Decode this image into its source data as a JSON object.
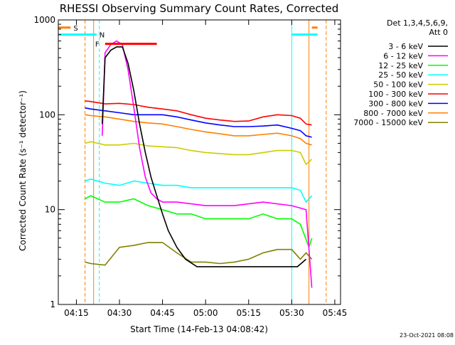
{
  "chart_data": {
    "type": "line",
    "title": "RHESSI Observing Summary Count Rates, Corrected",
    "xlabel": "Start Time (14-Feb-13 04:08:42)",
    "ylabel": "Corrected Count Rate (s⁻¹ detector⁻¹)",
    "y_scale": "log",
    "ylim": [
      1,
      1000
    ],
    "xlim": [
      "04:08:42",
      "05:47:00"
    ],
    "x_ticks": [
      "04:15",
      "04:30",
      "04:45",
      "05:00",
      "05:15",
      "05:30",
      "05:45"
    ],
    "y_ticks": [
      "1",
      "10",
      "100",
      "1000"
    ],
    "grid": false,
    "legend_position": "right",
    "legend_header": [
      "Det 1,3,4,5,6,9,",
      "Att 0"
    ],
    "corner_note": "23-Oct-2021 08:08",
    "series": [
      {
        "name": "3 - 6 keV",
        "color": "#000000",
        "points": [
          [
            "04:24",
            80
          ],
          [
            "04:25",
            400
          ],
          [
            "04:27",
            480
          ],
          [
            "04:29",
            520
          ],
          [
            "04:31",
            520
          ],
          [
            "04:33",
            350
          ],
          [
            "04:35",
            180
          ],
          [
            "04:37",
            80
          ],
          [
            "04:39",
            40
          ],
          [
            "04:41",
            22
          ],
          [
            "04:43",
            14
          ],
          [
            "04:45",
            9
          ],
          [
            "04:47",
            6
          ],
          [
            "04:50",
            4
          ],
          [
            "04:53",
            3
          ],
          [
            "04:57",
            2.5
          ],
          [
            "05:05",
            2.5
          ],
          [
            "05:15",
            2.5
          ],
          [
            "05:25",
            2.5
          ],
          [
            "05:32",
            2.5
          ],
          [
            "05:35",
            3
          ]
        ]
      },
      {
        "name": "6 - 12 keV",
        "color": "#ff00ff",
        "points": [
          [
            "04:24",
            60
          ],
          [
            "04:25",
            450
          ],
          [
            "04:27",
            550
          ],
          [
            "04:29",
            600
          ],
          [
            "04:31",
            550
          ],
          [
            "04:33",
            300
          ],
          [
            "04:35",
            120
          ],
          [
            "04:37",
            45
          ],
          [
            "04:39",
            22
          ],
          [
            "04:41",
            15
          ],
          [
            "04:43",
            13
          ],
          [
            "04:45",
            12
          ],
          [
            "04:50",
            12
          ],
          [
            "05:00",
            11
          ],
          [
            "05:10",
            11
          ],
          [
            "05:20",
            12
          ],
          [
            "05:30",
            11
          ],
          [
            "05:35",
            10
          ],
          [
            "05:37",
            1.5
          ]
        ]
      },
      {
        "name": "12 - 25 keV",
        "color": "#00ff00",
        "points": [
          [
            "04:18",
            13
          ],
          [
            "04:20",
            14
          ],
          [
            "04:25",
            12
          ],
          [
            "04:30",
            12
          ],
          [
            "04:35",
            13
          ],
          [
            "04:40",
            11
          ],
          [
            "04:45",
            10
          ],
          [
            "04:50",
            9
          ],
          [
            "04:55",
            9
          ],
          [
            "05:00",
            8
          ],
          [
            "05:05",
            8
          ],
          [
            "05:10",
            8
          ],
          [
            "05:15",
            8
          ],
          [
            "05:20",
            9
          ],
          [
            "05:25",
            8
          ],
          [
            "05:30",
            8
          ],
          [
            "05:33",
            7
          ],
          [
            "05:36",
            4
          ],
          [
            "05:37",
            5
          ]
        ]
      },
      {
        "name": "25 - 50 keV",
        "color": "#00ffff",
        "points": [
          [
            "04:18",
            20
          ],
          [
            "04:20",
            21
          ],
          [
            "04:25",
            19
          ],
          [
            "04:30",
            18
          ],
          [
            "04:35",
            20
          ],
          [
            "04:40",
            19
          ],
          [
            "04:45",
            18
          ],
          [
            "04:50",
            18
          ],
          [
            "04:55",
            17
          ],
          [
            "05:00",
            17
          ],
          [
            "05:05",
            17
          ],
          [
            "05:10",
            17
          ],
          [
            "05:15",
            17
          ],
          [
            "05:20",
            17
          ],
          [
            "05:25",
            17
          ],
          [
            "05:30",
            17
          ],
          [
            "05:33",
            16
          ],
          [
            "05:35",
            12
          ],
          [
            "05:37",
            14
          ]
        ]
      },
      {
        "name": "50 - 100 keV",
        "color": "#cccc00",
        "points": [
          [
            "04:18",
            50
          ],
          [
            "04:20",
            52
          ],
          [
            "04:25",
            48
          ],
          [
            "04:30",
            48
          ],
          [
            "04:35",
            50
          ],
          [
            "04:40",
            47
          ],
          [
            "04:45",
            46
          ],
          [
            "04:50",
            45
          ],
          [
            "04:55",
            42
          ],
          [
            "05:00",
            40
          ],
          [
            "05:05",
            39
          ],
          [
            "05:10",
            38
          ],
          [
            "05:15",
            38
          ],
          [
            "05:20",
            40
          ],
          [
            "05:25",
            42
          ],
          [
            "05:30",
            42
          ],
          [
            "05:33",
            40
          ],
          [
            "05:35",
            30
          ],
          [
            "05:37",
            34
          ]
        ]
      },
      {
        "name": "100 - 300 keV",
        "color": "#ff0000",
        "points": [
          [
            "04:18",
            140
          ],
          [
            "04:20",
            138
          ],
          [
            "04:25",
            130
          ],
          [
            "04:30",
            132
          ],
          [
            "04:35",
            128
          ],
          [
            "04:40",
            120
          ],
          [
            "04:45",
            115
          ],
          [
            "04:50",
            110
          ],
          [
            "04:55",
            100
          ],
          [
            "05:00",
            92
          ],
          [
            "05:05",
            88
          ],
          [
            "05:10",
            85
          ],
          [
            "05:15",
            86
          ],
          [
            "05:20",
            95
          ],
          [
            "05:25",
            100
          ],
          [
            "05:30",
            98
          ],
          [
            "05:33",
            92
          ],
          [
            "05:35",
            80
          ],
          [
            "05:37",
            78
          ]
        ]
      },
      {
        "name": "300 - 800 keV",
        "color": "#0000ff",
        "points": [
          [
            "04:18",
            118
          ],
          [
            "04:20",
            115
          ],
          [
            "04:25",
            110
          ],
          [
            "04:30",
            105
          ],
          [
            "04:35",
            100
          ],
          [
            "04:40",
            100
          ],
          [
            "04:45",
            100
          ],
          [
            "04:50",
            95
          ],
          [
            "04:55",
            88
          ],
          [
            "05:00",
            82
          ],
          [
            "05:05",
            78
          ],
          [
            "05:10",
            75
          ],
          [
            "05:15",
            75
          ],
          [
            "05:20",
            76
          ],
          [
            "05:25",
            78
          ],
          [
            "05:30",
            72
          ],
          [
            "05:33",
            68
          ],
          [
            "05:35",
            60
          ],
          [
            "05:37",
            58
          ]
        ]
      },
      {
        "name": "800 - 7000 keV",
        "color": "#ff8000",
        "points": [
          [
            "04:18",
            100
          ],
          [
            "04:20",
            98
          ],
          [
            "04:25",
            95
          ],
          [
            "04:30",
            90
          ],
          [
            "04:35",
            85
          ],
          [
            "04:40",
            82
          ],
          [
            "04:45",
            80
          ],
          [
            "04:50",
            75
          ],
          [
            "04:55",
            70
          ],
          [
            "05:00",
            66
          ],
          [
            "05:05",
            63
          ],
          [
            "05:10",
            60
          ],
          [
            "05:15",
            60
          ],
          [
            "05:20",
            62
          ],
          [
            "05:25",
            64
          ],
          [
            "05:30",
            60
          ],
          [
            "05:33",
            56
          ],
          [
            "05:35",
            50
          ],
          [
            "05:37",
            48
          ]
        ]
      },
      {
        "name": "7000 - 15000 keV",
        "color": "#808000",
        "points": [
          [
            "04:18",
            2.8
          ],
          [
            "04:20",
            2.7
          ],
          [
            "04:25",
            2.6
          ],
          [
            "04:30",
            4
          ],
          [
            "04:35",
            4.2
          ],
          [
            "04:40",
            4.5
          ],
          [
            "04:45",
            4.5
          ],
          [
            "04:50",
            3.5
          ],
          [
            "04:55",
            2.8
          ],
          [
            "05:00",
            2.8
          ],
          [
            "05:05",
            2.7
          ],
          [
            "05:10",
            2.8
          ],
          [
            "05:15",
            3
          ],
          [
            "05:20",
            3.5
          ],
          [
            "05:25",
            3.8
          ],
          [
            "05:30",
            3.8
          ],
          [
            "05:33",
            3
          ],
          [
            "05:35",
            3.5
          ],
          [
            "05:37",
            3
          ]
        ]
      }
    ],
    "flag_bars": [
      {
        "label": "S",
        "color": "#ff8000",
        "y": 830,
        "segments": [
          [
            "04:08:42",
            "04:13"
          ],
          [
            "05:37",
            "05:39"
          ]
        ]
      },
      {
        "label": "N",
        "color": "#00ffff",
        "y": 700,
        "segments": [
          [
            "04:08:42",
            "04:22"
          ],
          [
            "05:30",
            "05:39"
          ]
        ]
      },
      {
        "label": "F",
        "color": "#ff0000",
        "y": 560,
        "segments": [
          [
            "04:25",
            "04:43"
          ]
        ]
      }
    ],
    "vertical_lines": [
      {
        "time": "04:18",
        "color": "#ff8000",
        "dashed": true
      },
      {
        "time": "04:21",
        "color": "#ff8000",
        "dashed": false
      },
      {
        "time": "04:23",
        "color": "#00ffff",
        "dashed": true
      },
      {
        "time": "05:30",
        "color": "#00ffff",
        "dashed": false
      },
      {
        "time": "05:36",
        "color": "#ff8000",
        "dashed": false
      },
      {
        "time": "05:42",
        "color": "#ff8000",
        "dashed": true
      }
    ]
  }
}
